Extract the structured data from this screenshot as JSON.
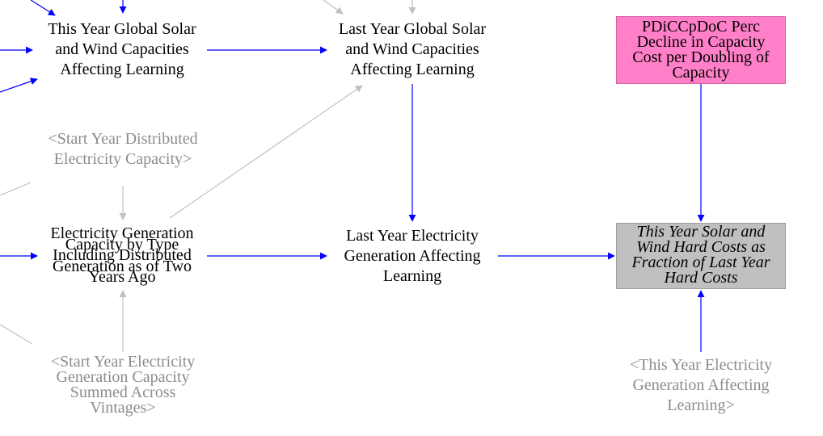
{
  "nodes": {
    "this_year_capacities": [
      "This Year Global Solar",
      "and Wind Capacities",
      "Affecting Learning"
    ],
    "last_year_capacities": [
      "Last Year Global Solar",
      "and Wind Capacities",
      "Affecting Learning"
    ],
    "pdiccpdoc": [
      "PDiCCpDoC Perc",
      "Decline in Capacity",
      "Cost per Doubling of",
      "Capacity"
    ],
    "start_year_distributed": [
      "<Start Year Distributed",
      "Electricity Capacity>"
    ],
    "gen_capacity_overlap_a": [
      "Electricity Generation",
      "Including Distributed",
      "Years Ago"
    ],
    "gen_capacity_overlap_b": [
      "Capacity by Type",
      "Generation as of Two"
    ],
    "last_year_generation": [
      "Last Year Electricity",
      "Generation Affecting",
      "Learning"
    ],
    "hard_costs_fraction": [
      "This Year Solar and",
      "Wind Hard Costs as",
      "Fraction of Last Year",
      "Hard Costs"
    ],
    "start_year_generation_capacity": [
      "<Start Year Electricity",
      "Generation Capacity",
      "Summed Across",
      "Vintages>"
    ],
    "this_year_generation_shadow": [
      "<This Year Electricity",
      "Generation Affecting",
      "Learning>"
    ]
  },
  "colors": {
    "causal_arrow": "#0000ff",
    "shadow_arrow": "#c0c0c0",
    "shadow_text": "#8c8c8c",
    "pink_box": "#ff80c8",
    "gray_box": "#c0c0c0"
  }
}
